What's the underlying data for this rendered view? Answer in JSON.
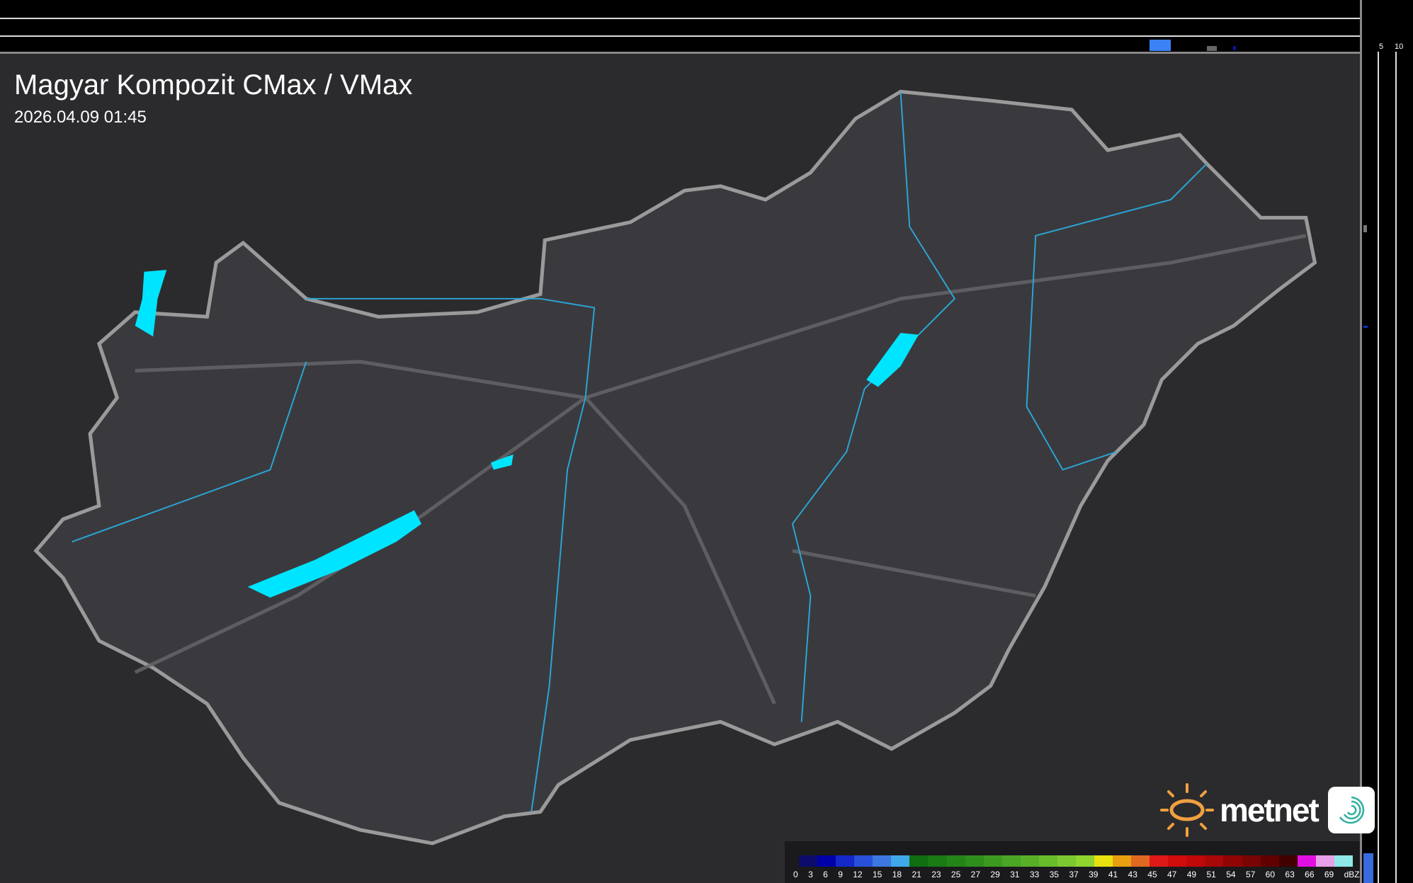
{
  "header": {
    "title": "Magyar Kompozit CMax / VMax",
    "timestamp": "2026.04.09 01:45"
  },
  "profile_axes": {
    "top_ticks": [
      "10",
      "5"
    ],
    "right_ticks": [
      "5",
      "10"
    ]
  },
  "logo": {
    "text": "metnet",
    "icons": [
      "sun-icon",
      "swirl-icon"
    ],
    "brand_color": "#f0a040"
  },
  "legend": {
    "unit": "dBZ",
    "labels": [
      "0",
      "3",
      "6",
      "9",
      "12",
      "15",
      "18",
      "21",
      "23",
      "25",
      "27",
      "29",
      "31",
      "33",
      "35",
      "37",
      "39",
      "41",
      "43",
      "45",
      "47",
      "49",
      "51",
      "54",
      "57",
      "60",
      "63",
      "66",
      "69"
    ],
    "colors": [
      "#0c0c6a",
      "#0000a8",
      "#1428c8",
      "#2850d8",
      "#3c78e0",
      "#40a8e8",
      "#0f6e0f",
      "#1a7a14",
      "#248418",
      "#2e8e1c",
      "#3c9a20",
      "#4aa624",
      "#58b028",
      "#68bc2c",
      "#7cc830",
      "#90d430",
      "#e8e010",
      "#e8a010",
      "#e06820",
      "#e01818",
      "#d00c0c",
      "#c00808",
      "#a80808",
      "#900404",
      "#780404",
      "#600000",
      "#400000",
      "#e010e0",
      "#e8a0e8",
      "#90e8e8"
    ]
  },
  "colors": {
    "water": "#00e5ff",
    "rivers": "#2aa8d8",
    "border": "#9a9a9a",
    "roads": "#6a6a6e"
  }
}
